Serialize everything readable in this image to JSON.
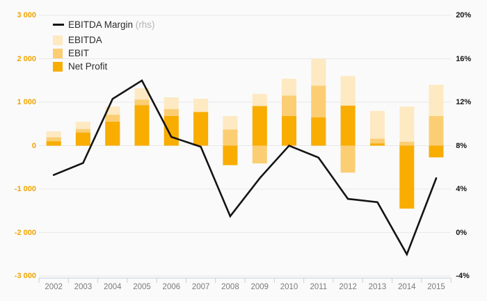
{
  "legend": {
    "items": [
      {
        "label": "EBITDA Margin",
        "suffix": "(rhs)",
        "type": "line",
        "color": "#141414"
      },
      {
        "label": "EBITDA",
        "suffix": "",
        "type": "box",
        "color": "#fde9c2"
      },
      {
        "label": "EBIT",
        "suffix": "",
        "type": "box",
        "color": "#fbce74"
      },
      {
        "label": "Net Profit",
        "suffix": "",
        "type": "box",
        "color": "#f8ad00"
      }
    ]
  },
  "chart_data": {
    "type": "bar+line combo",
    "categories": [
      "2002",
      "2003",
      "2004",
      "2005",
      "2006",
      "2007",
      "2008",
      "2009",
      "2010",
      "2011",
      "2012",
      "2013",
      "2014",
      "2015"
    ],
    "series": [
      {
        "name": "EBITDA Margin (rhs)",
        "type": "line",
        "axis": "right",
        "color": "#141414",
        "unit": "%",
        "values": [
          5.3,
          6.4,
          12.3,
          14.0,
          8.8,
          7.9,
          1.5,
          5.0,
          8.0,
          6.9,
          3.1,
          2.8,
          -2.0,
          5.0
        ]
      },
      {
        "name": "EBITDA",
        "type": "bar",
        "axis": "left",
        "color": "#fde9c2",
        "values": [
          330,
          550,
          900,
          1320,
          1110,
          1080,
          680,
          1190,
          1540,
          2000,
          1600,
          800,
          900,
          1400
        ]
      },
      {
        "name": "EBIT",
        "type": "bar",
        "axis": "left",
        "color": "#fbce74",
        "values": [
          190,
          380,
          710,
          1060,
          840,
          780,
          370,
          -410,
          1150,
          1380,
          -620,
          160,
          90,
          680
        ]
      },
      {
        "name": "Net Profit",
        "type": "bar",
        "axis": "left",
        "color": "#f8ad00",
        "values": [
          100,
          300,
          550,
          930,
          680,
          770,
          -450,
          910,
          680,
          650,
          920,
          50,
          -1450,
          -270
        ]
      }
    ],
    "left_axis": {
      "ticks": [
        "3 000",
        "2 000",
        "1 000",
        "0",
        "-1 000",
        "-2 000",
        "-3 000"
      ],
      "min": -3000,
      "max": 3000,
      "color": "#f0a402"
    },
    "right_axis": {
      "ticks": [
        "20%",
        "16%",
        "12%",
        "8%",
        "4%",
        "0%",
        "-4%"
      ],
      "min": -4,
      "max": 20,
      "color": "#141414"
    },
    "grid_color": "#e8e8e8",
    "axis_color": "#c7cde2",
    "background": "#fafafa",
    "legend_position": "top-left",
    "grid": "horizontal only"
  }
}
